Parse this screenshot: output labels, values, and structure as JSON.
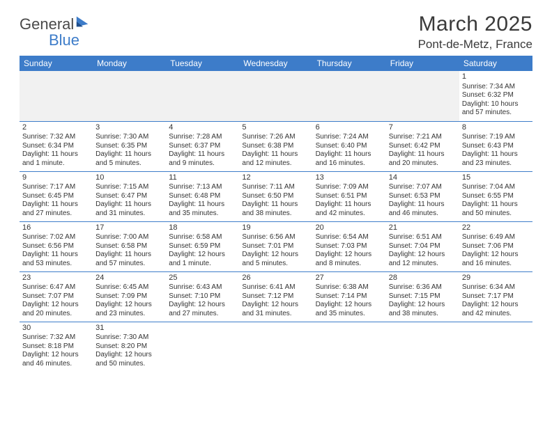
{
  "brand": {
    "name_part1": "General",
    "name_part2": "Blue",
    "accent_color": "#3d7cc9"
  },
  "title": "March 2025",
  "location": "Pont-de-Metz, France",
  "weekdays": [
    "Sunday",
    "Monday",
    "Tuesday",
    "Wednesday",
    "Thursday",
    "Friday",
    "Saturday"
  ],
  "colors": {
    "header_bg": "#3d7cc9",
    "header_text": "#ffffff",
    "border": "#3d7cc9",
    "blank_bg": "#f1f1f1",
    "text": "#333333"
  },
  "fonts": {
    "title_size_pt": 30,
    "location_size_pt": 17,
    "weekday_size_pt": 12,
    "cell_size_pt": 10
  },
  "days": [
    {
      "n": 1,
      "sunrise": "7:34 AM",
      "sunset": "6:32 PM",
      "daylight": "10 hours and 57 minutes."
    },
    {
      "n": 2,
      "sunrise": "7:32 AM",
      "sunset": "6:34 PM",
      "daylight": "11 hours and 1 minute."
    },
    {
      "n": 3,
      "sunrise": "7:30 AM",
      "sunset": "6:35 PM",
      "daylight": "11 hours and 5 minutes."
    },
    {
      "n": 4,
      "sunrise": "7:28 AM",
      "sunset": "6:37 PM",
      "daylight": "11 hours and 9 minutes."
    },
    {
      "n": 5,
      "sunrise": "7:26 AM",
      "sunset": "6:38 PM",
      "daylight": "11 hours and 12 minutes."
    },
    {
      "n": 6,
      "sunrise": "7:24 AM",
      "sunset": "6:40 PM",
      "daylight": "11 hours and 16 minutes."
    },
    {
      "n": 7,
      "sunrise": "7:21 AM",
      "sunset": "6:42 PM",
      "daylight": "11 hours and 20 minutes."
    },
    {
      "n": 8,
      "sunrise": "7:19 AM",
      "sunset": "6:43 PM",
      "daylight": "11 hours and 23 minutes."
    },
    {
      "n": 9,
      "sunrise": "7:17 AM",
      "sunset": "6:45 PM",
      "daylight": "11 hours and 27 minutes."
    },
    {
      "n": 10,
      "sunrise": "7:15 AM",
      "sunset": "6:47 PM",
      "daylight": "11 hours and 31 minutes."
    },
    {
      "n": 11,
      "sunrise": "7:13 AM",
      "sunset": "6:48 PM",
      "daylight": "11 hours and 35 minutes."
    },
    {
      "n": 12,
      "sunrise": "7:11 AM",
      "sunset": "6:50 PM",
      "daylight": "11 hours and 38 minutes."
    },
    {
      "n": 13,
      "sunrise": "7:09 AM",
      "sunset": "6:51 PM",
      "daylight": "11 hours and 42 minutes."
    },
    {
      "n": 14,
      "sunrise": "7:07 AM",
      "sunset": "6:53 PM",
      "daylight": "11 hours and 46 minutes."
    },
    {
      "n": 15,
      "sunrise": "7:04 AM",
      "sunset": "6:55 PM",
      "daylight": "11 hours and 50 minutes."
    },
    {
      "n": 16,
      "sunrise": "7:02 AM",
      "sunset": "6:56 PM",
      "daylight": "11 hours and 53 minutes."
    },
    {
      "n": 17,
      "sunrise": "7:00 AM",
      "sunset": "6:58 PM",
      "daylight": "11 hours and 57 minutes."
    },
    {
      "n": 18,
      "sunrise": "6:58 AM",
      "sunset": "6:59 PM",
      "daylight": "12 hours and 1 minute."
    },
    {
      "n": 19,
      "sunrise": "6:56 AM",
      "sunset": "7:01 PM",
      "daylight": "12 hours and 5 minutes."
    },
    {
      "n": 20,
      "sunrise": "6:54 AM",
      "sunset": "7:03 PM",
      "daylight": "12 hours and 8 minutes."
    },
    {
      "n": 21,
      "sunrise": "6:51 AM",
      "sunset": "7:04 PM",
      "daylight": "12 hours and 12 minutes."
    },
    {
      "n": 22,
      "sunrise": "6:49 AM",
      "sunset": "7:06 PM",
      "daylight": "12 hours and 16 minutes."
    },
    {
      "n": 23,
      "sunrise": "6:47 AM",
      "sunset": "7:07 PM",
      "daylight": "12 hours and 20 minutes."
    },
    {
      "n": 24,
      "sunrise": "6:45 AM",
      "sunset": "7:09 PM",
      "daylight": "12 hours and 23 minutes."
    },
    {
      "n": 25,
      "sunrise": "6:43 AM",
      "sunset": "7:10 PM",
      "daylight": "12 hours and 27 minutes."
    },
    {
      "n": 26,
      "sunrise": "6:41 AM",
      "sunset": "7:12 PM",
      "daylight": "12 hours and 31 minutes."
    },
    {
      "n": 27,
      "sunrise": "6:38 AM",
      "sunset": "7:14 PM",
      "daylight": "12 hours and 35 minutes."
    },
    {
      "n": 28,
      "sunrise": "6:36 AM",
      "sunset": "7:15 PM",
      "daylight": "12 hours and 38 minutes."
    },
    {
      "n": 29,
      "sunrise": "6:34 AM",
      "sunset": "7:17 PM",
      "daylight": "12 hours and 42 minutes."
    },
    {
      "n": 30,
      "sunrise": "7:32 AM",
      "sunset": "8:18 PM",
      "daylight": "12 hours and 46 minutes."
    },
    {
      "n": 31,
      "sunrise": "7:30 AM",
      "sunset": "8:20 PM",
      "daylight": "12 hours and 50 minutes."
    }
  ],
  "labels": {
    "sunrise": "Sunrise:",
    "sunset": "Sunset:",
    "daylight": "Daylight:"
  },
  "layout": {
    "first_weekday_index": 6,
    "rows": 6,
    "cols": 7
  }
}
